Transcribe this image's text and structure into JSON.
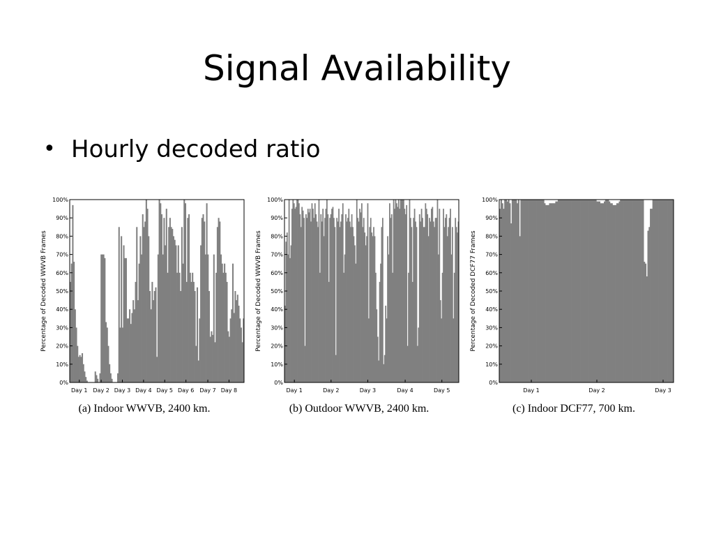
{
  "slide": {
    "title": "Signal Availability",
    "bullet": "Hourly decoded ratio"
  },
  "colors": {
    "bar": "#808080",
    "axis": "#000000"
  },
  "chart_data": [
    {
      "type": "bar",
      "caption": "(a) Indoor WWVB, 2400 km.",
      "ylabel": "Percentage of Decoded WWVB Frames",
      "xlabel": "",
      "ylim": [
        0,
        100
      ],
      "yticks": [
        "0%",
        "10%",
        "20%",
        "30%",
        "40%",
        "50%",
        "60%",
        "70%",
        "80%",
        "90%",
        "100%"
      ],
      "x_tick_labels": [
        "Day 1",
        "Day 2",
        "Day 3",
        "Day 4",
        "Day 5",
        "Day 6",
        "Day 7",
        "Day 8"
      ],
      "x_tick_positions": [
        14,
        46,
        77,
        108,
        139,
        170,
        202,
        233
      ],
      "x_range": [
        0,
        255
      ],
      "values": [
        55,
        65,
        97,
        66,
        40,
        30,
        20,
        14,
        15,
        14,
        16,
        10,
        6,
        3,
        1,
        0,
        0,
        0,
        0,
        0,
        0,
        6,
        4,
        2,
        0,
        5,
        70,
        70,
        70,
        68,
        33,
        30,
        20,
        10,
        5,
        2,
        0,
        0,
        0,
        0,
        5,
        85,
        30,
        80,
        30,
        75,
        68,
        68,
        35,
        35,
        40,
        32,
        38,
        45,
        40,
        55,
        85,
        45,
        65,
        80,
        70,
        92,
        85,
        88,
        100,
        95,
        80,
        50,
        40,
        55,
        45,
        50,
        52,
        14,
        70,
        100,
        98,
        92,
        70,
        90,
        75,
        95,
        60,
        85,
        90,
        85,
        84,
        80,
        78,
        75,
        60,
        75,
        60,
        50,
        85,
        65,
        100,
        98,
        55,
        90,
        92,
        60,
        55,
        60,
        55,
        50,
        20,
        52,
        12,
        35,
        75,
        90,
        92,
        88,
        70,
        98,
        70,
        50,
        25,
        28,
        26,
        70,
        22,
        60,
        85,
        90,
        88,
        70,
        65,
        60,
        65,
        60,
        55,
        28,
        25,
        35,
        40,
        65,
        38,
        50,
        45,
        48,
        42,
        35,
        30,
        22,
        35
      ]
    },
    {
      "type": "bar",
      "caption": "(b) Outdoor WWVB, 2400 km.",
      "ylabel": "Percentage of Decoded WWVB Frames",
      "xlabel": "",
      "ylim": [
        0,
        100
      ],
      "yticks": [
        "0%",
        "10%",
        "20%",
        "30%",
        "40%",
        "50%",
        "60%",
        "70%",
        "80%",
        "90%",
        "100%"
      ],
      "x_tick_labels": [
        "Day 1",
        "Day 2",
        "Day 3",
        "Day 4",
        "Day 5"
      ],
      "x_tick_positions": [
        14,
        66,
        118,
        171,
        223
      ],
      "x_range": [
        0,
        247
      ],
      "values": [
        42,
        77,
        82,
        70,
        100,
        68,
        75,
        95,
        100,
        98,
        95,
        96,
        100,
        100,
        98,
        92,
        85,
        96,
        94,
        90,
        20,
        92,
        90,
        95,
        93,
        95,
        88,
        98,
        95,
        90,
        98,
        92,
        88,
        85,
        100,
        60,
        92,
        88,
        95,
        80,
        90,
        95,
        100,
        92,
        55,
        90,
        92,
        95,
        96,
        90,
        85,
        15,
        90,
        88,
        95,
        85,
        88,
        92,
        98,
        60,
        70,
        92,
        88,
        90,
        95,
        88,
        85,
        92,
        85,
        80,
        75,
        65,
        100,
        90,
        88,
        95,
        93,
        98,
        85,
        90,
        82,
        75,
        80,
        98,
        35,
        85,
        90,
        82,
        80,
        85,
        80,
        60,
        40,
        25,
        12,
        55,
        65,
        85,
        90,
        10,
        15,
        42,
        35,
        80,
        70,
        98,
        90,
        92,
        60,
        100,
        95,
        100,
        98,
        96,
        100,
        95,
        100,
        100,
        100,
        100,
        95,
        92,
        97,
        20,
        60,
        100,
        90,
        85,
        55,
        90,
        95,
        88,
        85,
        20,
        30,
        92,
        88,
        95,
        90,
        85,
        85,
        98,
        95,
        92,
        80,
        90,
        88,
        95,
        96,
        88,
        85,
        90,
        90,
        100,
        70,
        95,
        45,
        35,
        60,
        95,
        85,
        90,
        92,
        80,
        85,
        90,
        95,
        70,
        85,
        35,
        60,
        90,
        85,
        82,
        88
      ]
    },
    {
      "type": "bar",
      "caption": "(c) Indoor DCF77, 700 km.",
      "ylabel": "Percentage of Decoded DCF77 Frames",
      "xlabel": "",
      "ylim": [
        0,
        100
      ],
      "yticks": [
        "0%",
        "10%",
        "20%",
        "30%",
        "40%",
        "50%",
        "60%",
        "70%",
        "80%",
        "90%",
        "100%"
      ],
      "x_tick_labels": [
        "Day 1",
        "Day 2",
        "Day 3"
      ],
      "x_tick_positions": [
        46,
        140,
        235
      ],
      "x_range": [
        0,
        250
      ],
      "values": [
        95,
        100,
        98,
        95,
        100,
        100,
        99,
        100,
        98,
        87,
        100,
        100,
        100,
        100,
        98,
        100,
        80,
        100,
        100,
        100,
        100,
        100,
        100,
        100,
        100,
        100,
        100,
        100,
        100,
        100,
        100,
        100,
        100,
        100,
        100,
        100,
        98,
        97,
        97,
        97,
        98,
        98,
        98,
        98,
        98,
        99,
        99,
        100,
        100,
        100,
        100,
        100,
        100,
        100,
        100,
        100,
        100,
        100,
        100,
        100,
        100,
        100,
        100,
        100,
        100,
        100,
        100,
        100,
        100,
        100,
        100,
        100,
        100,
        100,
        100,
        100,
        100,
        100,
        99,
        99,
        99,
        98,
        98,
        98,
        99,
        100,
        100,
        100,
        99,
        98,
        98,
        97,
        97,
        97,
        98,
        98,
        99,
        100,
        100,
        100,
        100,
        100,
        100,
        100,
        100,
        100,
        100,
        100,
        100,
        100,
        100,
        100,
        100,
        100,
        100,
        100,
        66,
        65,
        58,
        83,
        85,
        95,
        95,
        100,
        100,
        100,
        100,
        100,
        100,
        100,
        100,
        100,
        100,
        100,
        100,
        100,
        100,
        100,
        100,
        100
      ]
    }
  ]
}
